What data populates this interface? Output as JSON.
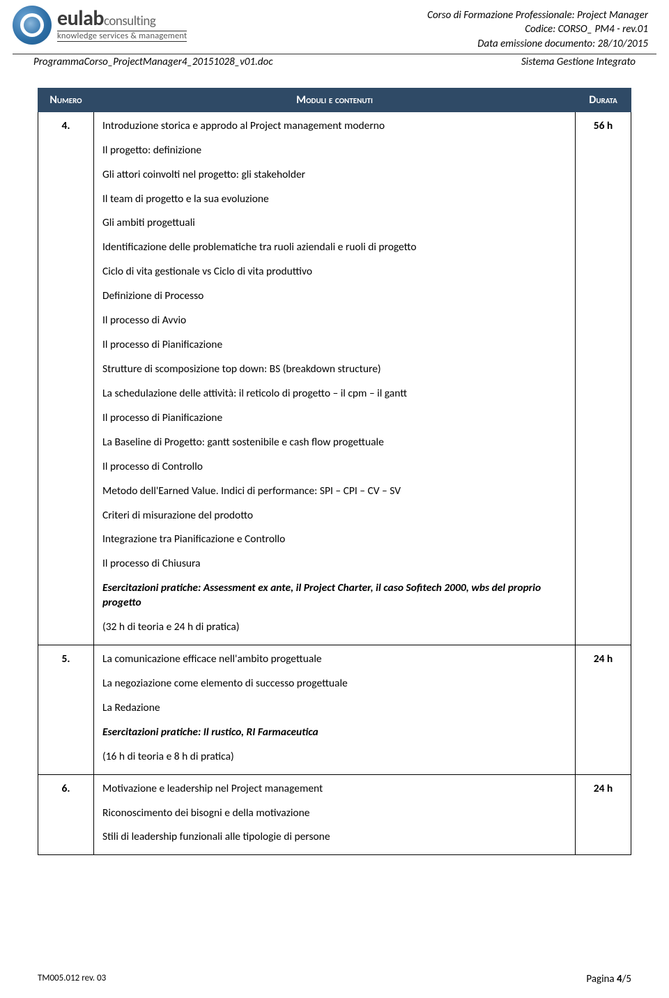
{
  "header": {
    "logo_name": "eulab",
    "logo_consulting": "consulting",
    "logo_tagline": "knowledge services & management",
    "right_line1": "Corso di Formazione Professionale: Project Manager",
    "right_line2": "Codice: CORSO_ PM4 - rev.01",
    "right_line3": "Data emissione documento: 28/10/2015",
    "sub_left": "ProgrammaCorso_ProjectManager4_20151028_v01.doc",
    "sub_right": "Sistema Gestione Integrato"
  },
  "table": {
    "header_num": "Numero",
    "header_mod": "Moduli e contenuti",
    "header_dur": "Durata",
    "rows": [
      {
        "num": "4.",
        "dur": "56 h",
        "lines": [
          "Introduzione storica e approdo al Project management moderno",
          "Il progetto: definizione",
          "Gli attori coinvolti nel progetto: gli stakeholder",
          "Il team di progetto e la sua evoluzione",
          "Gli ambiti progettuali",
          "Identificazione delle problematiche tra ruoli aziendali e ruoli di progetto",
          "Ciclo di vita gestionale vs Ciclo di vita produttivo",
          "Definizione di Processo",
          "Il processo di Avvio",
          "Il processo di Pianificazione",
          "Strutture di scomposizione top down: BS (breakdown structure)",
          "La schedulazione delle attività: il reticolo di progetto – il cpm – il gantt",
          "Il processo di Pianificazione",
          "La Baseline di Progetto: gantt sostenibile e cash flow progettuale",
          "Il processo di Controllo",
          "Metodo dell'Earned Value. Indici di performance: SPI – CPI – CV – SV",
          "Criteri di misurazione del prodotto",
          "Integrazione tra Pianificazione e Controllo",
          "Il processo di Chiusura"
        ],
        "emph": "Esercitazioni pratiche: Assessment ex ante, il Project Charter, il caso Sofitech 2000, wbs del proprio progetto",
        "note": "(32 h di teoria e 24 h di pratica)"
      },
      {
        "num": "5.",
        "dur": "24 h",
        "lines": [
          "La comunicazione efficace nell'ambito progettuale",
          "La negoziazione come elemento di successo progettuale",
          "La Redazione"
        ],
        "emph": "Esercitazioni pratiche: Il rustico, RI Farmaceutica",
        "note": "(16 h di teoria e 8 h di pratica)"
      },
      {
        "num": "6.",
        "dur": "24 h",
        "lines": [
          "Motivazione e leadership nel Project management",
          "Riconoscimento dei bisogni e della motivazione",
          "Stili di leadership funzionali alle tipologie di persone"
        ],
        "emph": "",
        "note": ""
      }
    ]
  },
  "footer": {
    "left": "TM005.012 rev. 03",
    "right_label": "Pagina ",
    "right_page": "4",
    "right_sep": "/",
    "right_total": "5"
  },
  "colors": {
    "header_bg": "#2f4a66",
    "header_fg": "#ffffff",
    "border": "#000000",
    "text": "#000000"
  }
}
